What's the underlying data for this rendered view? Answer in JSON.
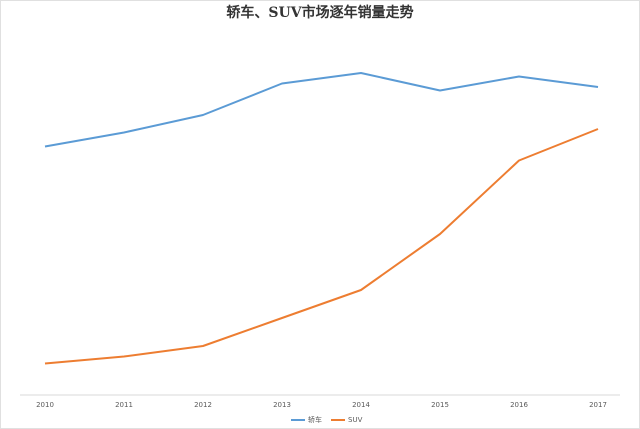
{
  "chart_data": {
    "type": "line",
    "title": "轿车、SUV市场逐年销量走势",
    "categories": [
      "2010",
      "2011",
      "2012",
      "2013",
      "2014",
      "2015",
      "2016",
      "2017"
    ],
    "series": [
      {
        "name": "轿车",
        "color": "#5b9bd5",
        "values": [
          71,
          75,
          80,
          89,
          92,
          87,
          91,
          88
        ]
      },
      {
        "name": "SUV",
        "color": "#ed7d31",
        "values": [
          9,
          11,
          14,
          22,
          30,
          46,
          67,
          76
        ]
      }
    ],
    "ylim": [
      0,
      100
    ],
    "grid": false,
    "legend": "bottom"
  }
}
